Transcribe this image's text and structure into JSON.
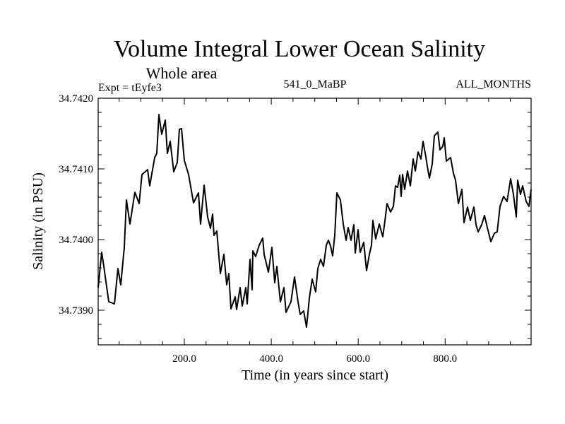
{
  "chart_data": {
    "type": "line",
    "title": "Volume Integral Lower Ocean Salinity",
    "subtitle": "Whole area",
    "annotations": {
      "left": "Expt = tEyfe3",
      "center": "541_0_MaBP",
      "right": "ALL_MONTHS"
    },
    "xlabel": "Time (in years since start)",
    "ylabel": "Salinity (in PSU)",
    "xlim": [
      1.8,
      997.7
    ],
    "ylim": [
      34.73851,
      34.742
    ],
    "x_ticks": [
      200,
      400,
      600,
      800
    ],
    "x_tick_labels": [
      "200.0",
      "400.0",
      "600.0",
      "800.0"
    ],
    "x_minor_step": 50,
    "y_ticks": [
      34.739,
      34.74,
      34.741,
      34.742
    ],
    "y_tick_labels": [
      "34.7390",
      "34.7400",
      "34.7410",
      "34.7420"
    ],
    "y_minor_step": 0.0002,
    "grid": false,
    "legend": "none",
    "line_color": "#000000",
    "series": [
      {
        "name": "Salinity",
        "x": [
          1.8,
          9.9,
          14.8,
          26.2,
          39.2,
          47.3,
          53.8,
          61.9,
          66.8,
          74.9,
          86.3,
          96.0,
          102.5,
          115.5,
          120.4,
          131.8,
          136.6,
          141.5,
          148.0,
          156.1,
          161.0,
          167.5,
          175.6,
          183.8,
          188.6,
          193.5,
          200.0,
          209.7,
          221.1,
          232.5,
          237.4,
          245.5,
          253.6,
          260.1,
          265.0,
          268.2,
          274.7,
          282.9,
          291.0,
          297.5,
          302.4,
          307.2,
          317.0,
          320.2,
          328.4,
          333.2,
          341.4,
          344.6,
          351.1,
          356.0,
          357.6,
          364.1,
          372.2,
          380.3,
          383.6,
          393.3,
          401.5,
          408.0,
          412.8,
          421.0,
          429.1,
          434.0,
          445.3,
          453.5,
          461.6,
          466.5,
          474.6,
          481.1,
          487.6,
          494.1,
          502.2,
          507.1,
          513.6,
          520.1,
          526.6,
          531.4,
          536.3,
          541.2,
          546.1,
          550.9,
          559.1,
          565.6,
          572.1,
          576.9,
          583.4,
          589.9,
          593.2,
          599.7,
          604.6,
          612.7,
          619.2,
          625.7,
          630.5,
          633.8,
          640.3,
          648.4,
          656.5,
          661.4,
          666.3,
          674.4,
          680.9,
          685.8,
          690.6,
          695.5,
          698.8,
          702.0,
          706.9,
          713.4,
          719.9,
          726.4,
          731.3,
          737.8,
          744.3,
          749.2,
          755.7,
          758.9,
          763.8,
          770.3,
          775.2,
          783.3,
          788.1,
          794.6,
          797.9,
          802.8,
          812.5,
          819.0,
          823.9,
          830.4,
          838.5,
          843.4,
          851.5,
          858.0,
          866.1,
          871.0,
          875.9,
          884.0,
          890.5,
          897.0,
          905.1,
          913.2,
          919.7,
          926.2,
          934.4,
          942.5,
          950.6,
          957.1,
          963.6,
          966.9,
          973.4,
          978.2,
          986.4,
          992.9,
          997.7
        ],
        "y": [
          34.73932,
          34.73982,
          34.73962,
          34.73912,
          34.73909,
          34.73959,
          34.73936,
          34.73989,
          34.74056,
          34.74022,
          34.74067,
          34.74051,
          34.74092,
          34.74099,
          34.74076,
          34.74116,
          34.74122,
          34.74177,
          34.74149,
          34.74169,
          34.74122,
          34.74139,
          34.74096,
          34.74109,
          34.74156,
          34.74157,
          34.74112,
          34.74092,
          34.74052,
          34.74066,
          34.74022,
          34.74077,
          34.74032,
          34.74016,
          34.74036,
          34.74006,
          34.74012,
          34.73952,
          34.73979,
          34.73936,
          34.73952,
          34.73902,
          34.73919,
          34.73901,
          34.73932,
          34.73906,
          34.73932,
          34.73909,
          34.73972,
          34.73929,
          34.73984,
          34.73976,
          34.73992,
          34.74002,
          34.73979,
          34.73954,
          34.73989,
          34.73939,
          34.73962,
          34.73912,
          34.73932,
          34.73897,
          34.73912,
          34.73947,
          34.73912,
          34.73894,
          34.73899,
          34.73876,
          34.73917,
          34.73944,
          34.73926,
          34.73959,
          34.73972,
          34.73962,
          34.73992,
          34.73999,
          34.73991,
          34.73977,
          34.74006,
          34.74066,
          34.74056,
          34.74022,
          34.73999,
          34.74017,
          34.73999,
          34.74021,
          34.73981,
          34.74014,
          34.73982,
          34.73996,
          34.73956,
          34.73979,
          34.73992,
          34.74027,
          34.74001,
          34.74022,
          34.74004,
          34.74026,
          34.74051,
          34.74039,
          34.74047,
          34.74076,
          34.74074,
          34.74091,
          34.74061,
          34.74092,
          34.74071,
          34.74097,
          34.74076,
          34.74114,
          34.74097,
          34.74124,
          34.74114,
          34.74139,
          34.74117,
          34.74104,
          34.74087,
          34.74107,
          34.74147,
          34.74152,
          34.74127,
          34.74132,
          34.74144,
          34.74111,
          34.74116,
          34.74094,
          34.74084,
          34.74051,
          34.74071,
          34.74024,
          34.74046,
          34.74027,
          34.74046,
          34.74021,
          34.74011,
          34.74021,
          34.74034,
          34.74017,
          34.73997,
          34.74009,
          34.74011,
          34.74047,
          34.74061,
          34.74054,
          34.74086,
          34.74064,
          34.74032,
          34.74084,
          34.74064,
          34.74076,
          34.74054,
          34.74047,
          34.74071
        ]
      }
    ]
  }
}
